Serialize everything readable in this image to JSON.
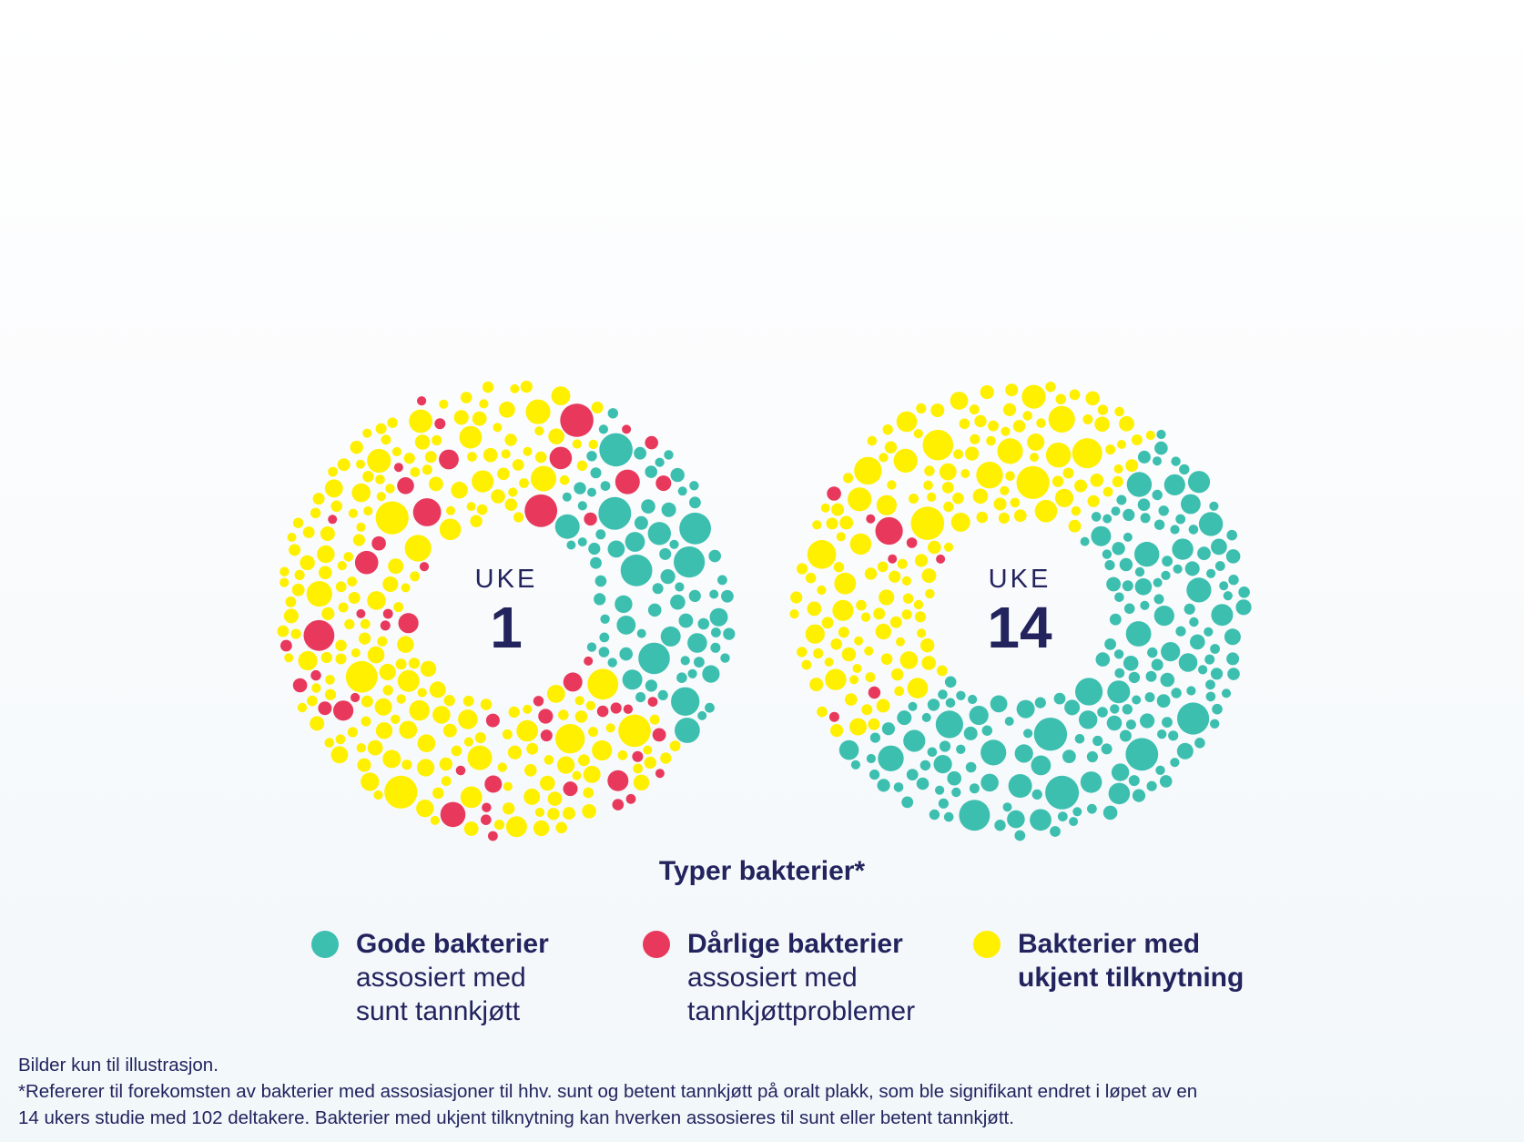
{
  "colors": {
    "good": "#3dbfb0",
    "bad": "#e8395c",
    "unknown": "#fff000",
    "text": "#23235e"
  },
  "chart_data": [
    {
      "type": "packed-bubble-donut",
      "center_label": "UKE",
      "center_value": "1",
      "composition": {
        "good": 20,
        "bad": 4,
        "unknown": 76
      },
      "unit": "percent of bubbles (approximate)"
    },
    {
      "type": "packed-bubble-donut",
      "center_label": "UKE",
      "center_value": "14",
      "composition": {
        "good": 55,
        "bad": 1,
        "unknown": 44
      },
      "unit": "percent of bubbles (approximate)"
    }
  ],
  "legend": {
    "title": "Typer bakterier*",
    "items": [
      {
        "key": "good",
        "bold": "Gode bakterier",
        "lines": [
          "assosiert med",
          "sunt tannkjøtt"
        ]
      },
      {
        "key": "bad",
        "bold": "Dårlige bakterier",
        "lines": [
          "assosiert med",
          "tannkjøttproblemer"
        ]
      },
      {
        "key": "unknown",
        "bold": "Bakterier med",
        "bold2": "ukjent tilknytning",
        "lines": []
      }
    ]
  },
  "footnotes": [
    "Bilder kun til illustrasjon.",
    "*Refererer til forekomsten av bakterier med assosiasjoner til hhv. sunt og betent tannkjøtt på oralt plakk, som ble signifikant endret i løpet av en",
    "14 ukers studie med 102 deltakere. Bakterier med ukjent tilknytning kan hverken assosieres til sunt eller betent tannkjøtt."
  ]
}
